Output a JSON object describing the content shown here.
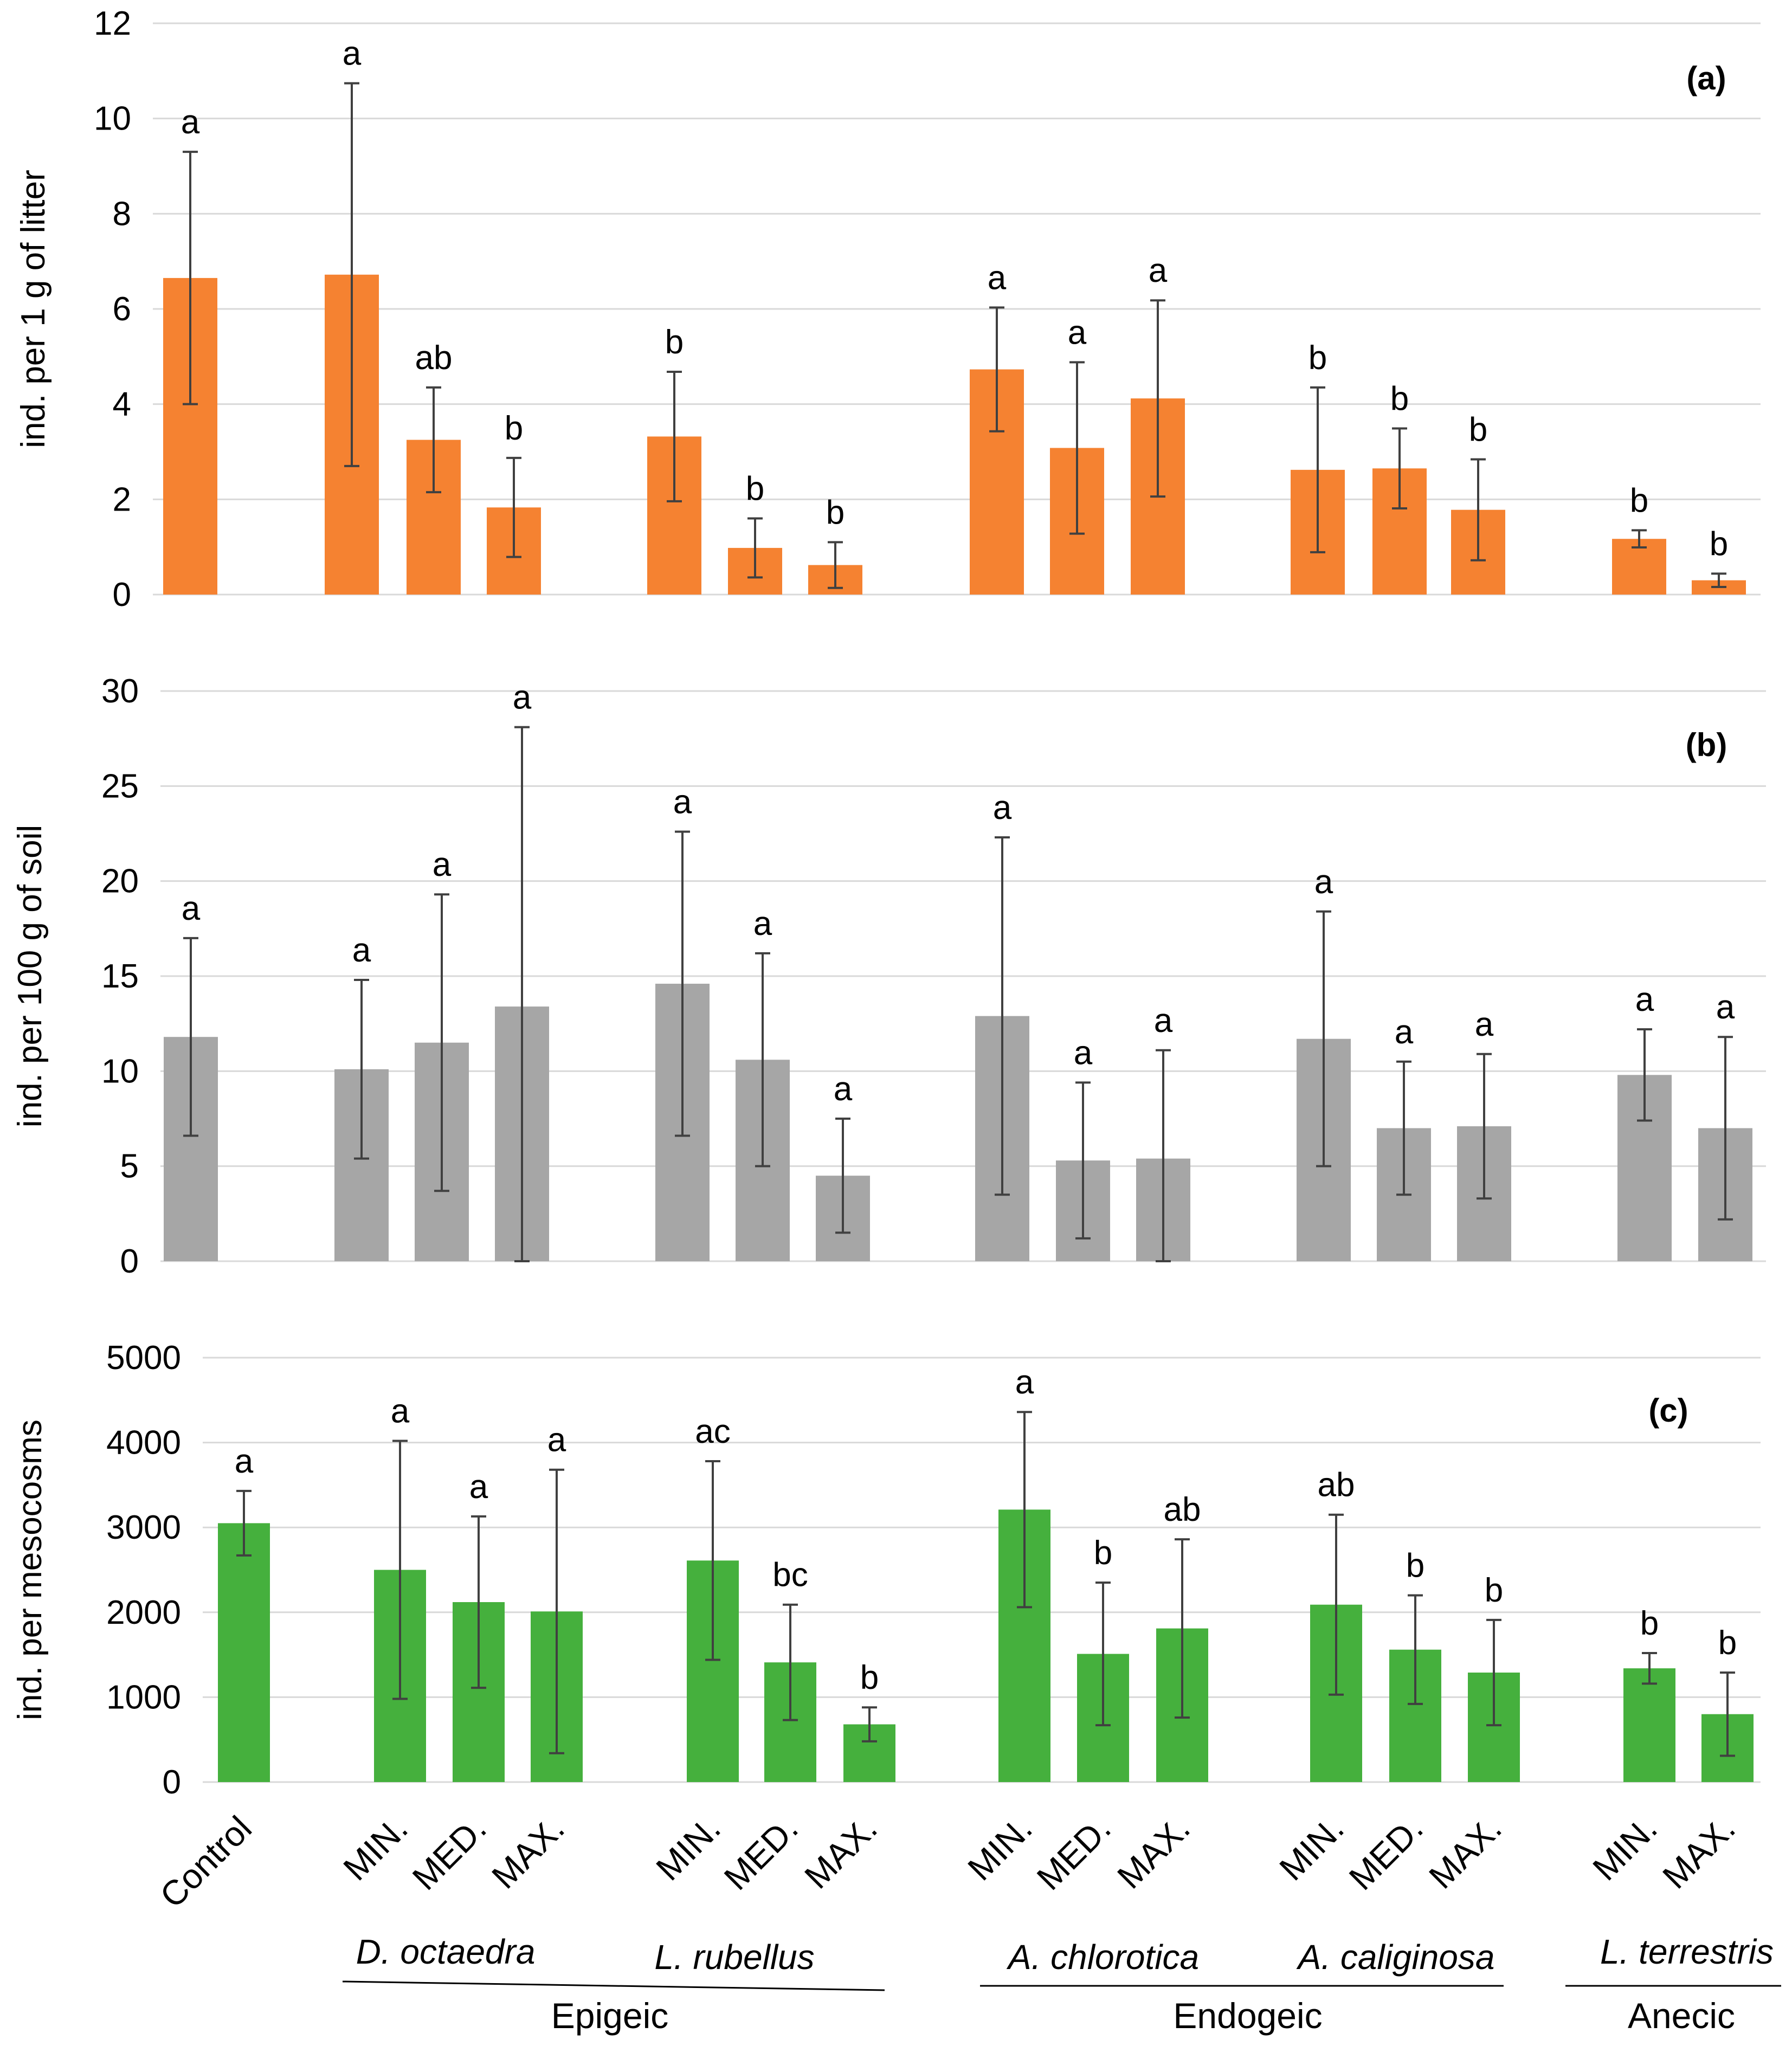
{
  "chart_data": [
    {
      "type": "bar",
      "panel_label": "(a)",
      "ylabel": "ind. per  1 g of litter",
      "ylim": [
        0,
        12
      ],
      "yticks": [
        "0",
        "2",
        "4",
        "6",
        "8",
        "10",
        "12"
      ],
      "yticks_values": [
        0,
        2,
        4,
        6,
        8,
        10,
        12
      ],
      "color": "#f58231",
      "values": [
        6.65,
        6.72,
        3.25,
        1.83,
        3.32,
        0.98,
        0.62,
        4.73,
        3.08,
        4.12,
        2.62,
        2.65,
        1.78,
        1.17,
        0.3
      ],
      "errors": [
        2.65,
        4.02,
        1.1,
        1.04,
        1.36,
        0.62,
        0.48,
        1.3,
        1.8,
        2.06,
        1.73,
        0.84,
        1.06,
        0.18,
        0.14
      ],
      "letters": [
        "a",
        "a",
        "ab",
        "b",
        "b",
        "b",
        "b",
        "a",
        "a",
        "a",
        "b",
        "b",
        "b",
        "b",
        "b"
      ]
    },
    {
      "type": "bar",
      "panel_label": "(b)",
      "ylabel": "ind. per 100 g of soil",
      "ylim": [
        0,
        30
      ],
      "yticks": [
        "0",
        "5",
        "10",
        "15",
        "20",
        "25",
        "30"
      ],
      "yticks_values": [
        0,
        5,
        10,
        15,
        20,
        25,
        30
      ],
      "color": "#a6a6a6",
      "values": [
        11.8,
        10.1,
        11.5,
        13.4,
        14.6,
        10.6,
        4.5,
        12.9,
        5.3,
        5.4,
        11.7,
        7.0,
        7.1,
        9.8,
        7.0
      ],
      "errors": [
        5.2,
        4.7,
        7.8,
        14.7,
        8.0,
        5.6,
        3.0,
        9.4,
        4.1,
        5.7,
        6.7,
        3.5,
        3.8,
        2.4,
        4.8
      ],
      "letters": [
        "a",
        "a",
        "a",
        "a",
        "a",
        "a",
        "a",
        "a",
        "a",
        "a",
        "a",
        "a",
        "a",
        "a",
        "a"
      ]
    },
    {
      "type": "bar",
      "panel_label": "(c)",
      "ylabel": "ind. per mesocosms",
      "ylim": [
        0,
        5000
      ],
      "yticks": [
        "0",
        "1000",
        "2000",
        "3000",
        "4000",
        "5000"
      ],
      "yticks_values": [
        0,
        1000,
        2000,
        3000,
        4000,
        5000
      ],
      "color": "#45b03d",
      "values": [
        3050,
        2500,
        2120,
        2010,
        2610,
        1410,
        680,
        3210,
        1510,
        1810,
        2090,
        1560,
        1290,
        1340,
        800
      ],
      "errors": [
        380,
        1520,
        1010,
        1670,
        1170,
        680,
        200,
        1150,
        840,
        1050,
        1060,
        640,
        620,
        180,
        490
      ],
      "letters": [
        "a",
        "a",
        "a",
        "a",
        "ac",
        "bc",
        "b",
        "a",
        "b",
        "ab",
        "ab",
        "b",
        "b",
        "b",
        "b"
      ]
    }
  ],
  "x_tick_labels": [
    "Control",
    "MIN.",
    "MED.",
    "MAX.",
    "MIN.",
    "MED.",
    "MAX.",
    "MIN.",
    "MED.",
    "MAX.",
    "MIN.",
    "MED.",
    "MAX.",
    "MIN.",
    "MAX."
  ],
  "species": [
    "D. octaedra",
    "L. rubellus",
    "A. chlorotica",
    "A. caliginosa",
    "L. terrestris"
  ],
  "groups": [
    "Epigeic",
    "Endogeic",
    "Anecic"
  ]
}
